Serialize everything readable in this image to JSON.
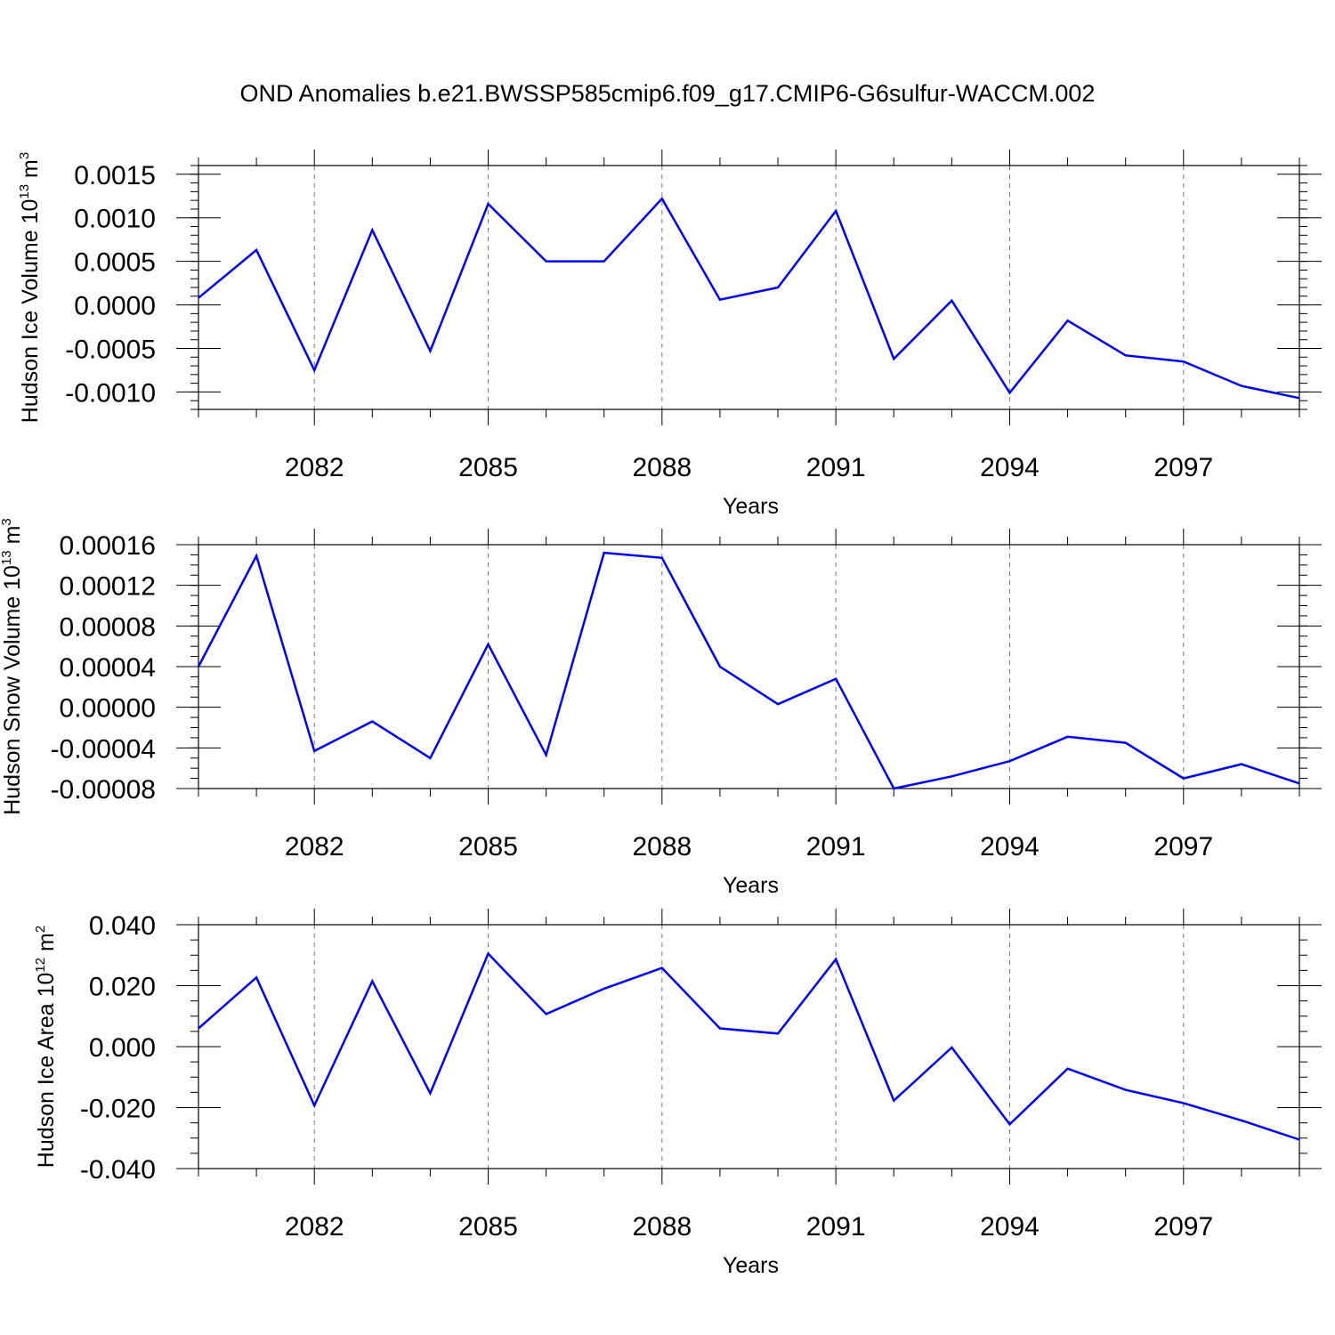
{
  "title": "OND Anomalies b.e21.BWSSP585cmip6.f09_g17.CMIP6-G6sulfur-WACCM.002",
  "colors": {
    "series": "#0000ff",
    "axis": "#000000",
    "grid": "#777777"
  },
  "chart_data": [
    {
      "type": "line",
      "ylabel": {
        "text": "Hudson Ice Volume 10",
        "sup1": "13",
        "mid": " m",
        "sup2": "3"
      },
      "xlabel": "Years",
      "xlim": [
        2080,
        2099
      ],
      "ylim": [
        -0.0012,
        0.0016
      ],
      "xticks": [
        2082,
        2085,
        2088,
        2091,
        2094,
        2097
      ],
      "yticks": [
        -0.001,
        -0.0005,
        0.0,
        0.0005,
        0.001,
        0.0015
      ],
      "ytick_labels": [
        "-0.0010",
        "-0.0005",
        "0.0000",
        "0.0005",
        "0.0010",
        "0.0015"
      ],
      "yminor_step": 0.0001,
      "grid": "vertical dashed at major x ticks",
      "x": [
        2080,
        2081,
        2082,
        2083,
        2084,
        2085,
        2086,
        2087,
        2088,
        2089,
        2090,
        2091,
        2092,
        2093,
        2094,
        2095,
        2096,
        2097,
        2098,
        2099
      ],
      "values": [
        8e-05,
        0.00063,
        -0.00075,
        0.00086,
        -0.00053,
        0.00116,
        0.0005,
        0.0005,
        0.00122,
        6e-05,
        0.0002,
        0.00108,
        -0.00062,
        5e-05,
        -0.00101,
        -0.00018,
        -0.00058,
        -0.00065,
        -0.00093,
        -0.00107
      ]
    },
    {
      "type": "line",
      "ylabel": {
        "text": "Hudson Snow Volume 10",
        "sup1": "13",
        "mid": " m",
        "sup2": "3"
      },
      "xlabel": "Years",
      "xlim": [
        2080,
        2099
      ],
      "ylim": [
        -8e-05,
        0.00016
      ],
      "xticks": [
        2082,
        2085,
        2088,
        2091,
        2094,
        2097
      ],
      "yticks": [
        -8e-05,
        -4e-05,
        0.0,
        4e-05,
        8e-05,
        0.00012,
        0.00016
      ],
      "ytick_labels": [
        "-0.00008",
        "-0.00004",
        "0.00000",
        "0.00004",
        "0.00008",
        "0.00012",
        "0.00016"
      ],
      "yminor_step": 1e-05,
      "grid": "vertical dashed at major x ticks",
      "x": [
        2080,
        2081,
        2082,
        2083,
        2084,
        2085,
        2086,
        2087,
        2088,
        2089,
        2090,
        2091,
        2092,
        2093,
        2094,
        2095,
        2096,
        2097,
        2098,
        2099
      ],
      "values": [
        4e-05,
        0.000149,
        -4.3e-05,
        -1.4e-05,
        -5e-05,
        6.2e-05,
        -4.7e-05,
        0.000152,
        0.000147,
        4e-05,
        3e-06,
        2.8e-05,
        -8e-05,
        -6.8e-05,
        -5.3e-05,
        -2.9e-05,
        -3.5e-05,
        -7e-05,
        -5.6e-05,
        -7.5e-05
      ]
    },
    {
      "type": "line",
      "ylabel": {
        "text": "Hudson Ice Area 10",
        "sup1": "12",
        "mid": " m",
        "sup2": "2"
      },
      "xlabel": "Years",
      "xlim": [
        2080,
        2099
      ],
      "ylim": [
        -0.04,
        0.04
      ],
      "xticks": [
        2082,
        2085,
        2088,
        2091,
        2094,
        2097
      ],
      "yticks": [
        -0.04,
        -0.02,
        0.0,
        0.02,
        0.04
      ],
      "ytick_labels": [
        "-0.040",
        "-0.020",
        "0.000",
        "0.020",
        "0.040"
      ],
      "yminor_step": 0.005,
      "grid": "vertical dashed at major x ticks",
      "x": [
        2080,
        2081,
        2082,
        2083,
        2084,
        2085,
        2086,
        2087,
        2088,
        2089,
        2090,
        2091,
        2092,
        2093,
        2094,
        2095,
        2096,
        2097,
        2098,
        2099
      ],
      "values": [
        0.006,
        0.0227,
        -0.0193,
        0.0215,
        -0.0153,
        0.0305,
        0.0107,
        0.019,
        0.0258,
        0.006,
        0.0043,
        0.0287,
        -0.0177,
        -0.0003,
        -0.0255,
        -0.0072,
        -0.0142,
        -0.0185,
        -0.0242,
        -0.0305
      ]
    }
  ]
}
